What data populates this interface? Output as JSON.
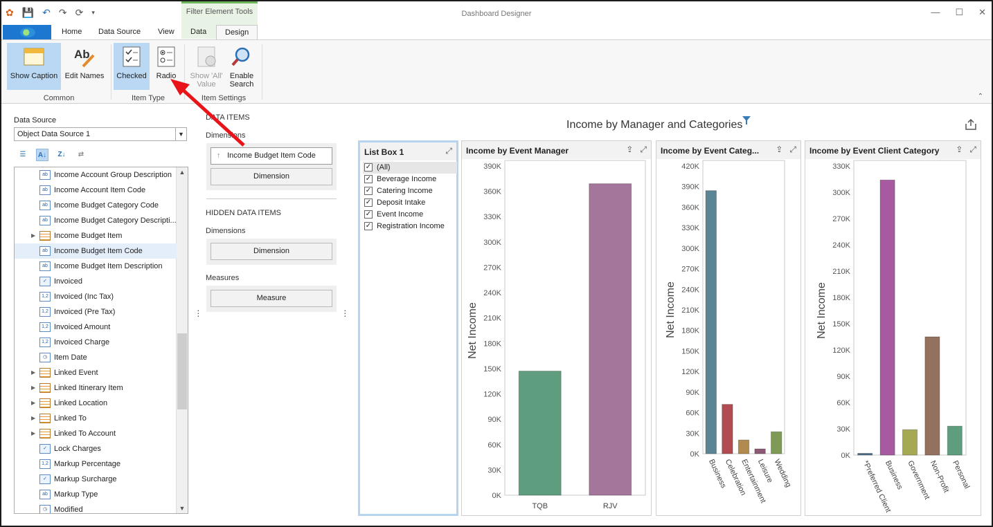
{
  "window": {
    "title": "Dashboard Designer"
  },
  "context_tab_group": "Filter Element Tools",
  "tabs": [
    {
      "label": "Home"
    },
    {
      "label": "Data Source"
    },
    {
      "label": "View"
    },
    {
      "label": "Data"
    },
    {
      "label": "Design"
    }
  ],
  "ribbon": {
    "buttons": {
      "show_caption": "Show Caption",
      "edit_names": "Edit Names",
      "checked": "Checked",
      "radio": "Radio",
      "show_all_value_1": "Show 'All'",
      "show_all_value_2": "Value",
      "enable_search_1": "Enable",
      "enable_search_2": "Search"
    },
    "groups": {
      "common": "Common",
      "item_type": "Item Type",
      "item_settings": "Item Settings"
    }
  },
  "data_source": {
    "label": "Data Source",
    "selected": "Object Data Source 1",
    "fields": [
      {
        "label": "Income Account Group Description",
        "type": "ab"
      },
      {
        "label": "Income Account Item Code",
        "type": "ab"
      },
      {
        "label": "Income Budget Category Code",
        "type": "ab"
      },
      {
        "label": "Income Budget Category Descripti...",
        "type": "ab"
      },
      {
        "label": "Income Budget Item",
        "type": "table"
      },
      {
        "label": "Income Budget Item Code",
        "type": "ab"
      },
      {
        "label": "Income Budget Item Description",
        "type": "ab"
      },
      {
        "label": "Invoiced",
        "type": "check"
      },
      {
        "label": "Invoiced (Inc Tax)",
        "type": "num"
      },
      {
        "label": "Invoiced (Pre Tax)",
        "type": "num"
      },
      {
        "label": "Invoiced Amount",
        "type": "num"
      },
      {
        "label": "Invoiced Charge",
        "type": "num"
      },
      {
        "label": "Item Date",
        "type": "date"
      },
      {
        "label": "Linked Event",
        "type": "table"
      },
      {
        "label": "Linked Itinerary Item",
        "type": "table"
      },
      {
        "label": "Linked Location",
        "type": "table"
      },
      {
        "label": "Linked To",
        "type": "table"
      },
      {
        "label": "Linked To Account",
        "type": "table"
      },
      {
        "label": "Lock Charges",
        "type": "check"
      },
      {
        "label": "Markup Percentage",
        "type": "num"
      },
      {
        "label": "Markup Surcharge",
        "type": "check"
      },
      {
        "label": "Markup Type",
        "type": "ab"
      },
      {
        "label": "Modified",
        "type": "date"
      }
    ]
  },
  "data_items": {
    "header": "DATA ITEMS",
    "dimensions_label": "Dimensions",
    "dimension_value": "Income Budget Item Code",
    "dimension_placeholder": "Dimension",
    "hidden_header": "HIDDEN DATA ITEMS",
    "hidden_dimensions_label": "Dimensions",
    "hidden_dimension_placeholder": "Dimension",
    "measures_label": "Measures",
    "measure_placeholder": "Measure"
  },
  "dashboard": {
    "title": "Income by Manager and Categories",
    "list_box": {
      "caption": "List Box 1",
      "items": [
        "(All)",
        "Beverage Income",
        "Catering Income",
        "Deposit Intake",
        "Event Income",
        "Registration Income"
      ]
    }
  },
  "chart_data": [
    {
      "type": "bar",
      "title": "Income by Event Manager",
      "ylabel": "Net Income",
      "categories": [
        "TQB",
        "RJV"
      ],
      "values": [
        147000,
        369000
      ],
      "colors": [
        "#5e9e7e",
        "#a4769b"
      ],
      "ylim": [
        0,
        390000
      ],
      "ticks": [
        "0K",
        "30K",
        "60K",
        "90K",
        "120K",
        "150K",
        "180K",
        "210K",
        "240K",
        "270K",
        "300K",
        "330K",
        "360K",
        "390K"
      ]
    },
    {
      "type": "bar",
      "title": "Income by Event Categ...",
      "ylabel": "Net Income",
      "categories": [
        "Business",
        "Celebration",
        "Entertainment",
        "Leisure",
        "Wedding"
      ],
      "values": [
        384000,
        72000,
        20000,
        7000,
        32000
      ],
      "colors": [
        "#5b8495",
        "#b34b52",
        "#b08a4e",
        "#8d5a75",
        "#7f9a56"
      ],
      "ylim": [
        0,
        420000
      ],
      "ticks": [
        "0K",
        "30K",
        "60K",
        "90K",
        "120K",
        "150K",
        "180K",
        "210K",
        "240K",
        "270K",
        "300K",
        "330K",
        "360K",
        "390K",
        "420K"
      ]
    },
    {
      "type": "bar",
      "title": "Income by Event Client Category",
      "ylabel": "Net Income",
      "categories": [
        "*Preferred Client",
        "Business",
        "Government",
        "Non-Profit",
        "Personal"
      ],
      "values": [
        2000,
        314000,
        29000,
        135000,
        33000
      ],
      "colors": [
        "#4e6f8a",
        "#a85aa0",
        "#a6a954",
        "#94705e",
        "#5e9e7e"
      ],
      "ylim": [
        0,
        330000
      ],
      "ticks": [
        "0K",
        "30K",
        "60K",
        "90K",
        "120K",
        "150K",
        "180K",
        "210K",
        "240K",
        "270K",
        "300K",
        "330K"
      ]
    }
  ]
}
